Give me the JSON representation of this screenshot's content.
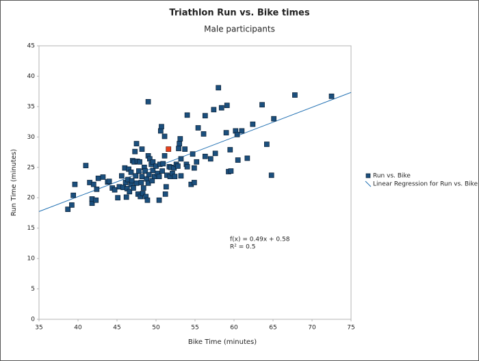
{
  "chart_data": {
    "type": "scatter",
    "title": "Triathlon Run vs. Bike times",
    "subtitle": "Male participants",
    "x_label": "Bike Time (minutes)",
    "y_label": "Run Time (minutes)",
    "xlim": [
      35,
      75
    ],
    "ylim": [
      0,
      45
    ],
    "xticks": [
      35,
      40,
      45,
      50,
      55,
      60,
      65,
      70,
      75
    ],
    "yticks": [
      0,
      5,
      10,
      15,
      20,
      25,
      30,
      35,
      40,
      45
    ],
    "grid": false,
    "legend": "right",
    "series": [
      {
        "name": "Run vs. Bike",
        "color": "#1b4f7d",
        "x": [
          38.7,
          39.2,
          39.4,
          39.6,
          41.0,
          41.5,
          41.8,
          41.8,
          42.0,
          42.3,
          42.4,
          42.6,
          43.2,
          43.8,
          44.0,
          44.4,
          44.7,
          45.1,
          45.3,
          45.6,
          45.8,
          46.0,
          46.1,
          46.2,
          46.3,
          46.4,
          46.5,
          46.6,
          46.8,
          46.8,
          46.9,
          47.0,
          47.1,
          47.2,
          47.3,
          47.4,
          47.5,
          47.5,
          47.6,
          47.7,
          47.8,
          47.9,
          48.0,
          48.1,
          48.2,
          48.2,
          48.3,
          48.4,
          48.5,
          48.6,
          48.7,
          48.8,
          48.9,
          49.0,
          49.0,
          49.0,
          49.1,
          49.2,
          49.4,
          49.5,
          49.6,
          49.6,
          49.8,
          50.0,
          50.2,
          50.4,
          50.4,
          50.5,
          50.6,
          50.7,
          50.8,
          50.9,
          51.1,
          51.1,
          51.2,
          51.3,
          51.4,
          51.7,
          51.8,
          51.9,
          52.1,
          52.3,
          52.4,
          52.6,
          52.8,
          52.9,
          53.0,
          53.1,
          53.2,
          53.2,
          53.7,
          53.9,
          54.0,
          54.0,
          54.5,
          54.7,
          54.9,
          54.9,
          55.2,
          55.4,
          56.1,
          56.3,
          56.3,
          57.0,
          57.4,
          57.6,
          58.0,
          58.4,
          59.0,
          59.1,
          59.3,
          59.5,
          59.6,
          60.2,
          60.4,
          60.5,
          61.0,
          61.7,
          62.4,
          63.6,
          64.2,
          64.8,
          65.1,
          67.8,
          72.5
        ],
        "values": [
          18.1,
          18.8,
          20.4,
          22.2,
          25.3,
          22.5,
          19.1,
          19.8,
          22.2,
          19.6,
          21.4,
          23.2,
          23.4,
          22.6,
          22.7,
          21.6,
          21.3,
          20.0,
          21.8,
          23.6,
          21.7,
          24.9,
          22.5,
          20.1,
          21.5,
          23.0,
          24.7,
          21.0,
          24.2,
          22.2,
          22.8,
          26.1,
          21.6,
          25.9,
          27.6,
          23.6,
          22.4,
          28.9,
          26.0,
          20.6,
          24.4,
          25.9,
          20.2,
          22.5,
          28.0,
          23.5,
          20.7,
          21.6,
          25.0,
          24.4,
          20.2,
          23.1,
          19.6,
          35.8,
          26.9,
          22.4,
          23.8,
          26.4,
          25.5,
          22.8,
          24.5,
          25.9,
          23.5,
          25.2,
          24.0,
          23.5,
          19.6,
          25.5,
          31.0,
          31.7,
          24.4,
          25.6,
          30.1,
          26.9,
          20.6,
          21.8,
          23.7,
          25.1,
          23.5,
          25.0,
          24.0,
          24.9,
          23.5,
          25.5,
          25.2,
          28.1,
          28.9,
          29.7,
          23.6,
          26.4,
          28.0,
          25.5,
          25.1,
          33.6,
          22.2,
          27.2,
          22.5,
          24.9,
          25.9,
          31.5,
          30.5,
          33.5,
          26.8,
          26.4,
          34.5,
          27.3,
          38.1,
          34.8,
          30.7,
          35.2,
          24.3,
          27.9,
          24.4,
          31.0,
          30.4,
          26.2,
          31.0,
          26.5,
          32.1,
          35.3,
          28.8,
          23.7,
          33.0,
          36.9,
          36.7
        ]
      }
    ],
    "highlight": {
      "x": 51.6,
      "y": 28.0,
      "color": "#e8401c"
    },
    "regression": {
      "name": "Linear Regression for Run vs. Bike",
      "color": "#1f6fb2",
      "slope": 0.49,
      "intercept": 0.58
    },
    "annotations": [
      "f(x) = 0.49x + 0.58",
      "R² = 0.5"
    ]
  }
}
